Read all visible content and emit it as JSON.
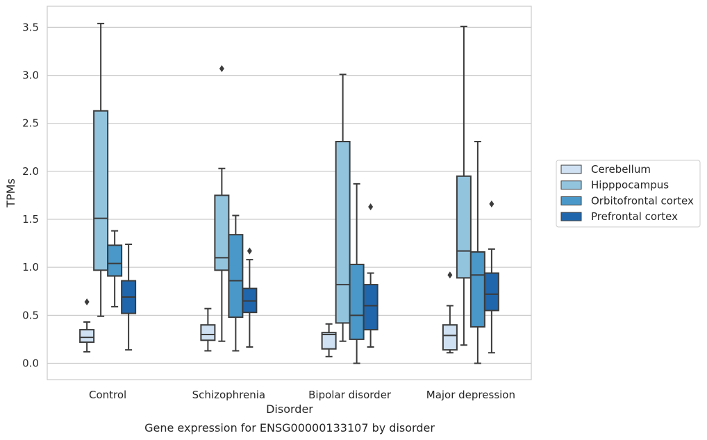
{
  "caption": "Gene expression for ENSG00000133107 by disorder",
  "chart_data": {
    "type": "boxplot",
    "xlabel": "Disorder",
    "ylabel": "TPMs",
    "ylim": [
      -0.17,
      3.72
    ],
    "yticks": [
      "0.0",
      "0.5",
      "1.0",
      "1.5",
      "2.0",
      "2.5",
      "3.0",
      "3.5"
    ],
    "grid": true,
    "legend_position": "right",
    "categories": [
      "Control",
      "Schizophrenia",
      "Bipolar disorder",
      "Major depression"
    ],
    "series": [
      {
        "name": "Cerebellum",
        "color": "#cfe1f2",
        "boxes": [
          {
            "whislo": 0.12,
            "q1": 0.22,
            "med": 0.27,
            "q3": 0.35,
            "whishi": 0.43,
            "fliers": [
              0.64
            ]
          },
          {
            "whislo": 0.13,
            "q1": 0.24,
            "med": 0.3,
            "q3": 0.4,
            "whishi": 0.57,
            "fliers": []
          },
          {
            "whislo": 0.07,
            "q1": 0.15,
            "med": 0.3,
            "q3": 0.32,
            "whishi": 0.41,
            "fliers": []
          },
          {
            "whislo": 0.11,
            "q1": 0.14,
            "med": 0.29,
            "q3": 0.4,
            "whishi": 0.6,
            "fliers": [
              0.92
            ]
          }
        ]
      },
      {
        "name": "Hipppocampus",
        "color": "#93c4de",
        "boxes": [
          {
            "whislo": 0.49,
            "q1": 0.97,
            "med": 1.51,
            "q3": 2.63,
            "whishi": 3.54,
            "fliers": []
          },
          {
            "whislo": 0.23,
            "q1": 0.97,
            "med": 1.1,
            "q3": 1.75,
            "whishi": 2.03,
            "fliers": [
              3.07
            ]
          },
          {
            "whislo": 0.23,
            "q1": 0.42,
            "med": 0.82,
            "q3": 2.31,
            "whishi": 3.01,
            "fliers": []
          },
          {
            "whislo": 0.19,
            "q1": 0.89,
            "med": 1.17,
            "q3": 1.95,
            "whishi": 3.51,
            "fliers": []
          }
        ]
      },
      {
        "name": "Orbitofrontal cortex",
        "color": "#4a98c9",
        "boxes": [
          {
            "whislo": 0.59,
            "q1": 0.91,
            "med": 1.04,
            "q3": 1.23,
            "whishi": 1.38,
            "fliers": []
          },
          {
            "whislo": 0.13,
            "q1": 0.48,
            "med": 0.86,
            "q3": 1.34,
            "whishi": 1.54,
            "fliers": []
          },
          {
            "whislo": 0.0,
            "q1": 0.25,
            "med": 0.5,
            "q3": 1.03,
            "whishi": 1.87,
            "fliers": []
          },
          {
            "whislo": 0.0,
            "q1": 0.38,
            "med": 0.92,
            "q3": 1.16,
            "whishi": 2.31,
            "fliers": []
          }
        ]
      },
      {
        "name": "Prefrontal cortex",
        "color": "#2066ac",
        "boxes": [
          {
            "whislo": 0.14,
            "q1": 0.52,
            "med": 0.69,
            "q3": 0.86,
            "whishi": 1.24,
            "fliers": []
          },
          {
            "whislo": 0.17,
            "q1": 0.53,
            "med": 0.65,
            "q3": 0.78,
            "whishi": 1.08,
            "fliers": [
              1.17
            ]
          },
          {
            "whislo": 0.17,
            "q1": 0.35,
            "med": 0.6,
            "q3": 0.82,
            "whishi": 0.94,
            "fliers": [
              1.63
            ]
          },
          {
            "whislo": 0.11,
            "q1": 0.55,
            "med": 0.72,
            "q3": 0.94,
            "whishi": 1.19,
            "fliers": [
              1.66
            ]
          }
        ]
      }
    ]
  }
}
